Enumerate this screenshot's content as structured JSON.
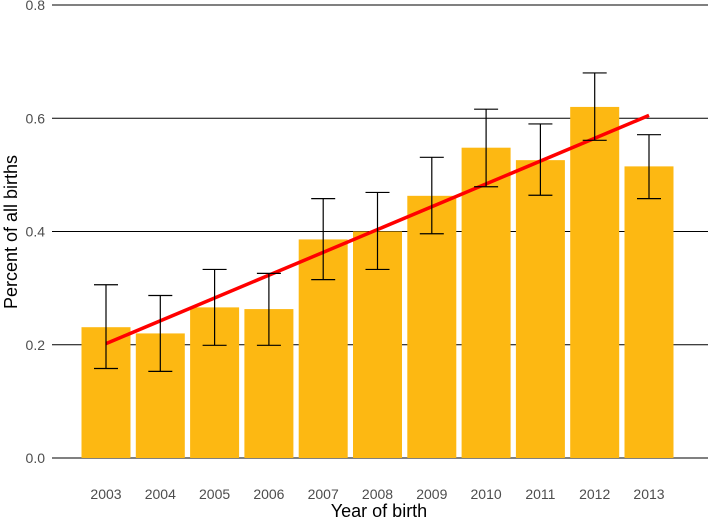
{
  "chart_data": {
    "type": "bar",
    "title": "",
    "xlabel": "Year of birth",
    "ylabel": "Percent of all births",
    "categories": [
      "2003",
      "2004",
      "2005",
      "2006",
      "2007",
      "2008",
      "2009",
      "2010",
      "2011",
      "2012",
      "2013"
    ],
    "values": [
      0.231,
      0.22,
      0.266,
      0.263,
      0.386,
      0.4,
      0.463,
      0.548,
      0.526,
      0.62,
      0.515
    ],
    "error_low": [
      0.158,
      0.153,
      0.199,
      0.199,
      0.315,
      0.333,
      0.396,
      0.479,
      0.464,
      0.561,
      0.458
    ],
    "error_high": [
      0.306,
      0.287,
      0.333,
      0.326,
      0.458,
      0.469,
      0.531,
      0.616,
      0.59,
      0.68,
      0.571
    ],
    "trend": {
      "start": 0.202,
      "end": 0.605
    },
    "ylim": [
      0,
      0.8
    ],
    "yticks": [
      "0.0",
      "0.2",
      "0.4",
      "0.6",
      "0.8"
    ],
    "ytick_values": [
      0,
      0.2,
      0.4,
      0.6,
      0.8
    ],
    "grid": "horizontal",
    "colors": {
      "bar": "#FDB812",
      "trend": "#FF0000",
      "error": "#000000",
      "grid": "#000000"
    }
  }
}
